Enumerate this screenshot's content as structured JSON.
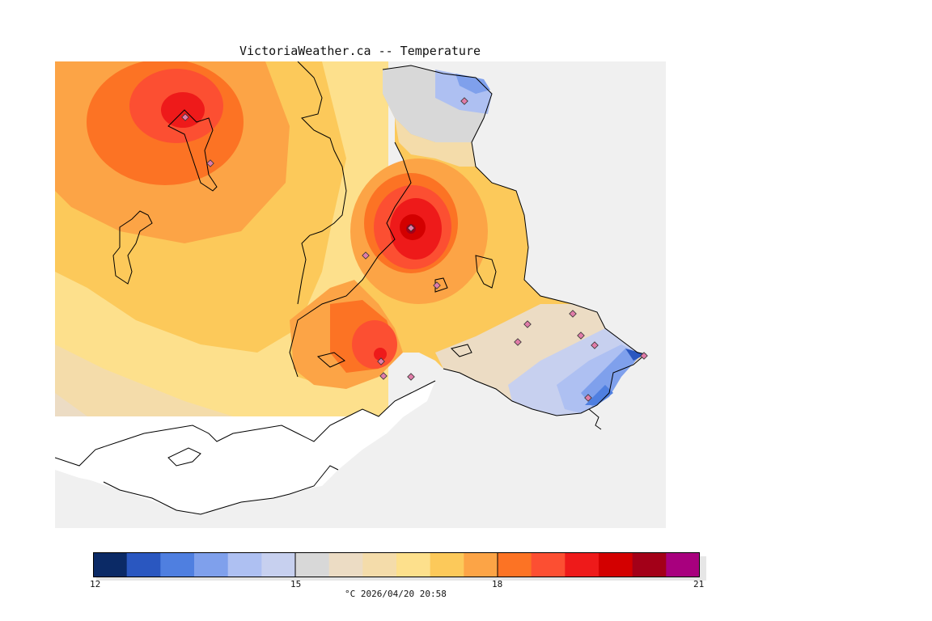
{
  "title": "VictoriaWeather.ca -- Temperature",
  "legend": {
    "min": 12,
    "max": 21,
    "labels": [
      "12",
      "15",
      "18",
      "21"
    ],
    "caption": "°C  2026/04/20 20:58",
    "colors": [
      "#0b2a66",
      "#2a57c0",
      "#4f7fe0",
      "#7fa0ec",
      "#aec0f2",
      "#c7d0ef",
      "#d8d8d8",
      "#ecdcc4",
      "#f4dcaa",
      "#fde08c",
      "#fcc95a",
      "#fca446",
      "#fc7324",
      "#fc4f32",
      "#ee1a1a",
      "#d30000",
      "#a30018",
      "#a8007e"
    ]
  },
  "map": {
    "land_color": "#ffffff",
    "water_color": "#f0f0f0",
    "station_count": 16,
    "hot_spots": [
      "20.5 °C",
      "19.5 °C",
      "19 °C"
    ],
    "cold_spots": [
      "13 °C",
      "13.5 °C"
    ]
  }
}
